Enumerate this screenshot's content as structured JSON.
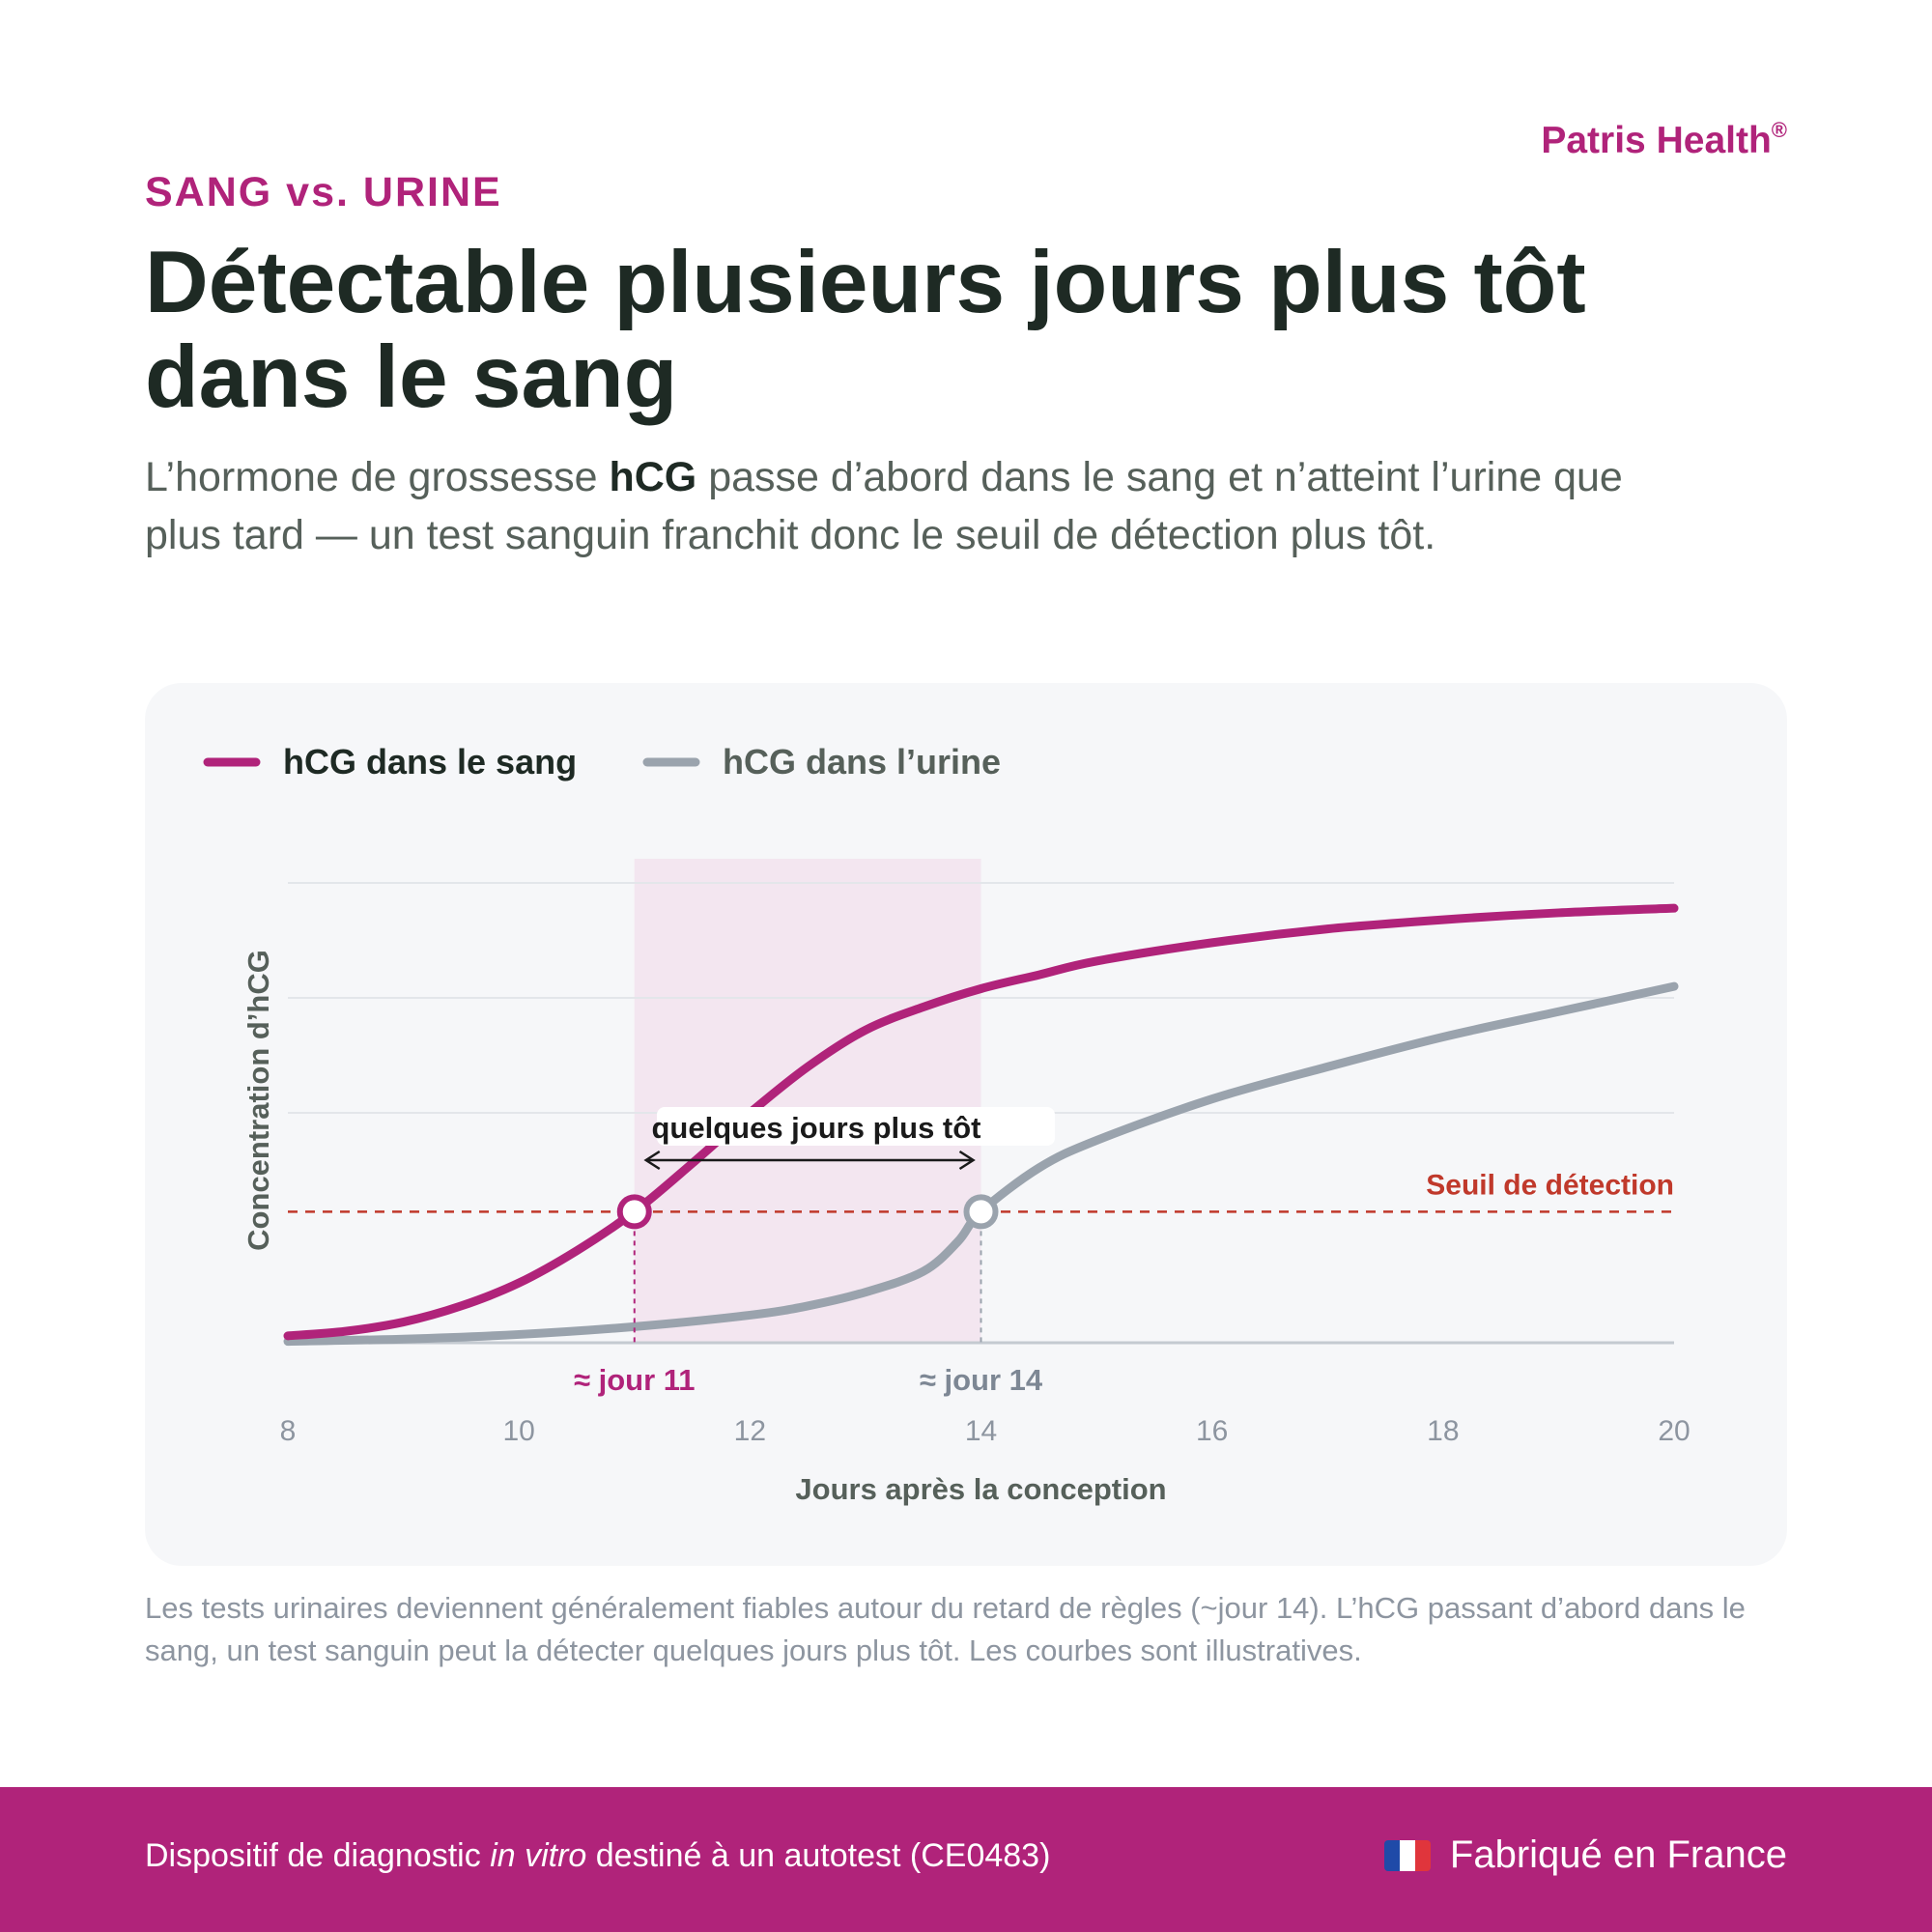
{
  "brand": {
    "name": "Patris Health",
    "mark": "®"
  },
  "eyebrow": "SANG vs. URINE",
  "headline": "Détectable plusieurs jours plus tôt dans le sang",
  "lede": {
    "before": "L’hormone de grossesse ",
    "bold": "hCG",
    "after": " passe d’abord dans le sang et n’atteint l’urine que plus tard — un test sanguin franchit donc le seuil de détection plus tôt."
  },
  "chart_data": {
    "type": "line",
    "xlabel": "Jours après la conception",
    "ylabel": "Concentration d’hCG",
    "xlim": [
      8,
      20
    ],
    "ylim": [
      0,
      1
    ],
    "x_ticks": [
      "8",
      "10",
      "12",
      "14",
      "16",
      "18",
      "20"
    ],
    "grid": true,
    "legend_position": "top-left",
    "threshold": {
      "value": 0.285,
      "label": "Seuil de détection",
      "color": "#c0392b"
    },
    "series": [
      {
        "name": "hCG dans le sang",
        "color": "#b0237a",
        "x": [
          8,
          8.5,
          9,
          9.5,
          10,
          10.5,
          11,
          11.5,
          12,
          12.5,
          13,
          13.5,
          14,
          14.5,
          15,
          16,
          17,
          18,
          19,
          20
        ],
        "y": [
          0.015,
          0.025,
          0.045,
          0.08,
          0.13,
          0.2,
          0.285,
          0.39,
          0.5,
          0.6,
          0.68,
          0.73,
          0.77,
          0.8,
          0.83,
          0.87,
          0.9,
          0.92,
          0.935,
          0.945
        ]
      },
      {
        "name": "hCG dans l’urine",
        "color": "#9aa3ad",
        "x": [
          8,
          9,
          10,
          11,
          12,
          12.5,
          13,
          13.5,
          13.8,
          14,
          14.5,
          15,
          16,
          17,
          18,
          19,
          20
        ],
        "y": [
          0.003,
          0.008,
          0.018,
          0.035,
          0.06,
          0.08,
          0.11,
          0.155,
          0.22,
          0.285,
          0.38,
          0.44,
          0.53,
          0.6,
          0.665,
          0.72,
          0.775
        ]
      }
    ],
    "highlight_range": {
      "from": 11,
      "to": 14,
      "label": "quelques jours plus tôt"
    },
    "markers": [
      {
        "x": 11,
        "label": "≈ jour 11",
        "series": "hCG dans le sang"
      },
      {
        "x": 14,
        "label": "≈ jour 14",
        "series": "hCG dans l’urine"
      }
    ]
  },
  "footnote": "Les tests urinaires deviennent généralement fiables autour du retard de règles (~jour 14). L’hCG passant d’abord dans le sang, un test sanguin peut la détecter quelques jours plus tôt. Les courbes sont illustratives.",
  "footer": {
    "text_before": "Dispositif de diagnostic ",
    "text_italic": "in vitro",
    "text_after": " destiné à un autotest (CE0483)",
    "made_in": "Fabriqué en France",
    "flag_icon": "france-flag-icon"
  }
}
